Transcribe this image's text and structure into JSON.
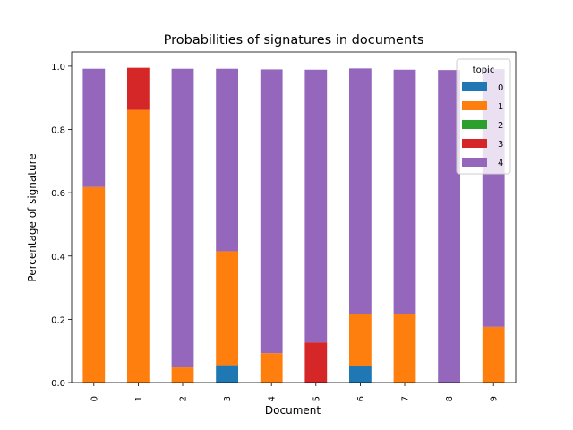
{
  "chart_data": {
    "type": "bar",
    "stacked": true,
    "title": "Probabilities of signatures in documents",
    "xlabel": "Document",
    "ylabel": "Percentage of signature",
    "categories": [
      "0",
      "1",
      "2",
      "3",
      "4",
      "5",
      "6",
      "7",
      "8",
      "9"
    ],
    "ylim": [
      0,
      1.0
    ],
    "yticks": [
      "0.0",
      "0.2",
      "0.4",
      "0.6",
      "0.8",
      "1.0"
    ],
    "grid": false,
    "legend": {
      "title": "topic",
      "placement": "top-right"
    },
    "series": [
      {
        "name": "0",
        "color": "#1f77b4",
        "values": [
          0,
          0,
          0,
          0.055,
          0,
          0,
          0.053,
          0,
          0,
          0
        ]
      },
      {
        "name": "1",
        "color": "#ff7f0e",
        "values": [
          0.618,
          0.862,
          0.048,
          0.36,
          0.093,
          0,
          0.163,
          0.218,
          0,
          0.176
        ]
      },
      {
        "name": "2",
        "color": "#2ca02c",
        "values": [
          0,
          0,
          0,
          0,
          0,
          0,
          0,
          0,
          0,
          0
        ]
      },
      {
        "name": "3",
        "color": "#d62728",
        "values": [
          0,
          0.133,
          0,
          0,
          0,
          0.127,
          0,
          0,
          0,
          0
        ]
      },
      {
        "name": "4",
        "color": "#9467bd",
        "values": [
          0.374,
          0,
          0.944,
          0.577,
          0.897,
          0.862,
          0.777,
          0.771,
          0.988,
          0.815
        ]
      }
    ]
  }
}
